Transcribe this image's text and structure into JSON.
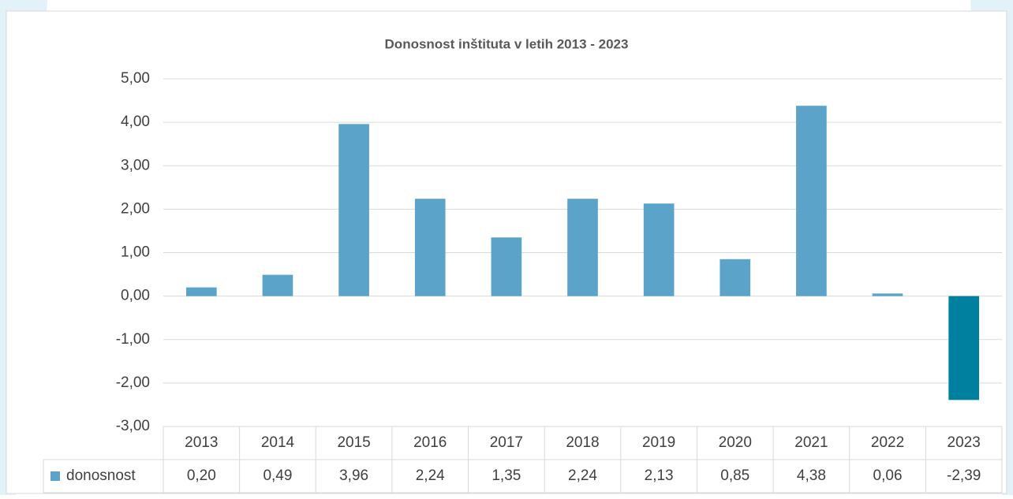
{
  "chart_data": {
    "type": "bar",
    "title": "Donosnost inštituta v letih 2013 - 2023",
    "categories": [
      "2013",
      "2014",
      "2015",
      "2016",
      "2017",
      "2018",
      "2019",
      "2020",
      "2021",
      "2022",
      "2023"
    ],
    "series": [
      {
        "name": "donosnost",
        "color": "#5ba3c9",
        "colors": [
          "#5ba3c9",
          "#5ba3c9",
          "#5ba3c9",
          "#5ba3c9",
          "#5ba3c9",
          "#5ba3c9",
          "#5ba3c9",
          "#5ba3c9",
          "#5ba3c9",
          "#5ba3c9",
          "#00809f"
        ],
        "values": [
          0.2,
          0.49,
          3.96,
          2.24,
          1.35,
          2.24,
          2.13,
          0.85,
          4.38,
          0.06,
          -2.39
        ],
        "value_labels": [
          "0,20",
          "0,49",
          "3,96",
          "2,24",
          "1,35",
          "2,24",
          "2,13",
          "0,85",
          "4,38",
          "0,06",
          "-2,39"
        ]
      }
    ],
    "ylim": [
      -3,
      5
    ],
    "yticks": [
      {
        "value": -3,
        "label": "-3,00"
      },
      {
        "value": -2,
        "label": "-2,00"
      },
      {
        "value": -1,
        "label": "-1,00"
      },
      {
        "value": 0,
        "label": "0,00"
      },
      {
        "value": 1,
        "label": "1,00"
      },
      {
        "value": 2,
        "label": "2,00"
      },
      {
        "value": 3,
        "label": "3,00"
      },
      {
        "value": 4,
        "label": "4,00"
      },
      {
        "value": 5,
        "label": "5,00"
      }
    ],
    "grid": true
  }
}
